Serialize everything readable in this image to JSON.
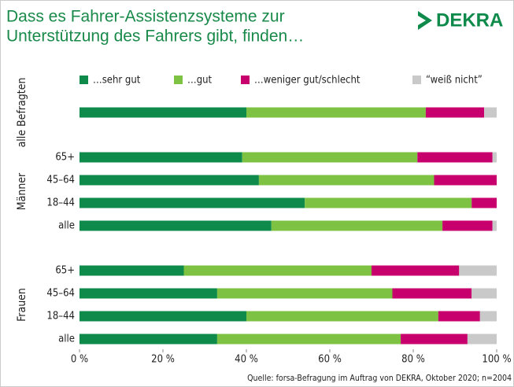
{
  "chart_data": {
    "type": "stacked-bar-horizontal",
    "title": [
      "Dass es Fahrer-Assistenzsysteme zur",
      "Unterstützung des Fahrers gibt, finden…"
    ],
    "logo": "DEKRA",
    "groups": [
      {
        "name": "alle Befragten",
        "categories": [
          null
        ]
      },
      {
        "name": "Männer",
        "categories": [
          "65+",
          "45–64",
          "18–44",
          "alle"
        ]
      },
      {
        "name": "Frauen",
        "categories": [
          "65+",
          "45–64",
          "18–44",
          "alle"
        ]
      }
    ],
    "series": [
      {
        "name": "…sehr gut",
        "color": "#0e8a4b",
        "values": [
          40,
          39,
          43,
          54,
          46,
          25,
          33,
          40,
          33
        ]
      },
      {
        "name": "…gut",
        "color": "#7dc242",
        "values": [
          43,
          42,
          42,
          40,
          41,
          45,
          42,
          46,
          44
        ]
      },
      {
        "name": "…weniger gut/schlecht",
        "color": "#c8006e",
        "values": [
          14,
          18,
          15,
          6,
          12,
          21,
          19,
          10,
          16
        ]
      },
      {
        "name": "“weiß nicht”",
        "color": "#c9c9c9",
        "values": [
          3,
          1,
          0,
          0,
          1,
          9,
          6,
          4,
          7
        ]
      }
    ],
    "xlim": [
      0,
      100
    ],
    "xticks": [
      {
        "value": 0,
        "label": "0 %"
      },
      {
        "value": 20,
        "label": "20 %"
      },
      {
        "value": 40,
        "label": "40 %"
      },
      {
        "value": 60,
        "label": "60 %"
      },
      {
        "value": 80,
        "label": "80 %"
      },
      {
        "value": 100,
        "label": "100 %"
      }
    ],
    "source": "Quelle: forsa-Befragung im Auftrag von DEKRA, Oktober 2020; n=2004"
  }
}
